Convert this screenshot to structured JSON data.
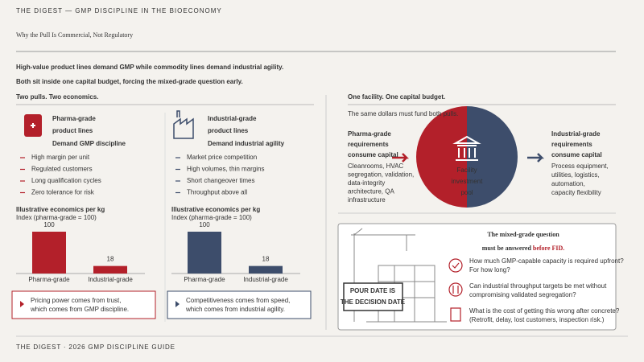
{
  "header": {
    "kicker": "THE DIGEST — GMP DISCIPLINE IN THE BIOECONOMY",
    "title": "Why the Pull Is Commercial, Not Regulatory",
    "subtitle": [
      "High-value product lines demand GMP while commodity lines demand industrial agility.",
      "Both sit inside one capital budget, forcing the mixed-grade question early."
    ]
  },
  "left": {
    "heading": "Two pulls. Two economics.",
    "panels": [
      {
        "title": [
          "Pharma-grade",
          "product lines"
        ],
        "demand": "Demand GMP discipline",
        "bullets": [
          "High margin per unit",
          "Regulated customers",
          "Long qualification cycles",
          "Zero tolerance for risk"
        ],
        "chart": {
          "type": "bar",
          "title": "Illustrative economics per kg",
          "subtitle": "Index (pharma-grade = 100)",
          "categories": [
            "Pharma-grade",
            "Industrial-grade"
          ],
          "values": [
            100,
            18
          ],
          "color": "#b3202a"
        },
        "note": [
          "Pricing power comes from trust,",
          "which comes from GMP discipline."
        ]
      },
      {
        "title": [
          "Industrial-grade",
          "product lines"
        ],
        "demand": "Demand industrial agility",
        "bullets": [
          "Market price competition",
          "High volumes, thin margins",
          "Short changeover times",
          "Throughput above all"
        ],
        "chart": {
          "type": "bar",
          "title": "Illustrative economics per kg",
          "subtitle": "Index (pharma-grade = 100)",
          "categories": [
            "Pharma-grade",
            "Industrial-grade"
          ],
          "values": [
            100,
            18
          ],
          "color": "#3d4d6b"
        },
        "note": [
          "Competitiveness comes from speed,",
          "which comes from industrial agility."
        ]
      }
    ]
  },
  "right": {
    "heading": "One facility. One capital budget.",
    "intro": "The same dollars must fund both pulls.",
    "pharma": {
      "title": [
        "Pharma-grade",
        "requirements",
        "consume capital"
      ],
      "items": [
        "Cleanrooms, HVAC",
        "segregation, validation,",
        "data-integrity",
        "architecture, QA",
        "infrastructure"
      ]
    },
    "pool": [
      "Facility",
      "investment",
      "pool"
    ],
    "industrial": {
      "title": [
        "Industrial-grade",
        "requirements",
        "consume capital"
      ],
      "items": [
        "Process equipment,",
        "utilities, logistics,",
        "automation,",
        "capacity flexibility"
      ]
    },
    "question": {
      "line1": "The mixed-grade question",
      "line2": "must be answered",
      "emphasis": "before FID.",
      "sign": [
        "POUR DATE IS",
        "THE DECISION DATE"
      ],
      "items": [
        [
          "How much GMP-capable capacity is required upfront?",
          "For how long?"
        ],
        [
          "Can industrial throughput targets be met without",
          "compromising validated segregation?"
        ],
        [
          "What is the cost of getting this wrong after concrete?",
          "(Retrofit, delay, lost customers, inspection risk.)"
        ]
      ]
    }
  },
  "footer": "THE DIGEST · 2026 GMP DISCIPLINE GUIDE"
}
